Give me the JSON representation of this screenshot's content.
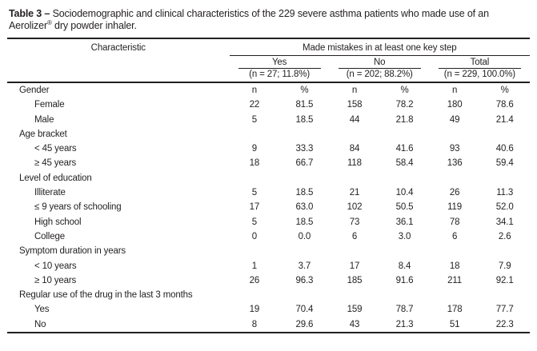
{
  "title": {
    "label": "Table 3 –",
    "text": "Sociodemographic and clinical characteristics of the 229 severe asthma patients who made use of an Aerolizer",
    "trademark": "®",
    "text_end": " dry powder inhaler."
  },
  "table": {
    "characteristic_header": "Characteristic",
    "span_header": "Made mistakes in at least one key step",
    "groups": [
      {
        "name": "Yes",
        "n_label": "(n = 27; 11.8%)"
      },
      {
        "name": "No",
        "n_label": "(n = 202; 88.2%)"
      },
      {
        "name": "Total",
        "n_label": "(n = 229, 100.0%)"
      }
    ],
    "rows": [
      {
        "label": "Gender",
        "indent": false,
        "cells": [
          "n",
          "%",
          "n",
          "%",
          "n",
          "%"
        ]
      },
      {
        "label": "Female",
        "indent": true,
        "cells": [
          "22",
          "81.5",
          "158",
          "78.2",
          "180",
          "78.6"
        ]
      },
      {
        "label": "Male",
        "indent": true,
        "cells": [
          "5",
          "18.5",
          "44",
          "21.8",
          "49",
          "21.4"
        ]
      },
      {
        "label": "Age bracket",
        "indent": false,
        "cells": [
          "",
          "",
          "",
          "",
          "",
          ""
        ]
      },
      {
        "label": "< 45 years",
        "indent": true,
        "cells": [
          "9",
          "33.3",
          "84",
          "41.6",
          "93",
          "40.6"
        ]
      },
      {
        "label": "≥ 45 years",
        "indent": true,
        "cells": [
          "18",
          "66.7",
          "118",
          "58.4",
          "136",
          "59.4"
        ]
      },
      {
        "label": "Level of education",
        "indent": false,
        "cells": [
          "",
          "",
          "",
          "",
          "",
          ""
        ]
      },
      {
        "label": "Illiterate",
        "indent": true,
        "cells": [
          "5",
          "18.5",
          "21",
          "10.4",
          "26",
          "11.3"
        ]
      },
      {
        "label": "≤ 9 years of schooling",
        "indent": true,
        "cells": [
          "17",
          "63.0",
          "102",
          "50.5",
          "119",
          "52.0"
        ]
      },
      {
        "label": "High school",
        "indent": true,
        "cells": [
          "5",
          "18.5",
          "73",
          "36.1",
          "78",
          "34.1"
        ]
      },
      {
        "label": "College",
        "indent": true,
        "cells": [
          "0",
          "0.0",
          "6",
          "3.0",
          "6",
          "2.6"
        ]
      },
      {
        "label": "Symptom duration in years",
        "indent": false,
        "cells": [
          "",
          "",
          "",
          "",
          "",
          ""
        ]
      },
      {
        "label": "< 10 years",
        "indent": true,
        "cells": [
          "1",
          "3.7",
          "17",
          "8.4",
          "18",
          "7.9"
        ]
      },
      {
        "label": "≥ 10 years",
        "indent": true,
        "cells": [
          "26",
          "96.3",
          "185",
          "91.6",
          "211",
          "92.1"
        ]
      },
      {
        "label": "Regular use of the drug in the last 3 months",
        "indent": false,
        "cells": [
          "",
          "",
          "",
          "",
          "",
          ""
        ]
      },
      {
        "label": "Yes",
        "indent": true,
        "cells": [
          "19",
          "70.4",
          "159",
          "78.7",
          "178",
          "77.7"
        ]
      },
      {
        "label": "No",
        "indent": true,
        "cells": [
          "8",
          "29.6",
          "43",
          "21.3",
          "51",
          "22.3"
        ]
      }
    ]
  }
}
